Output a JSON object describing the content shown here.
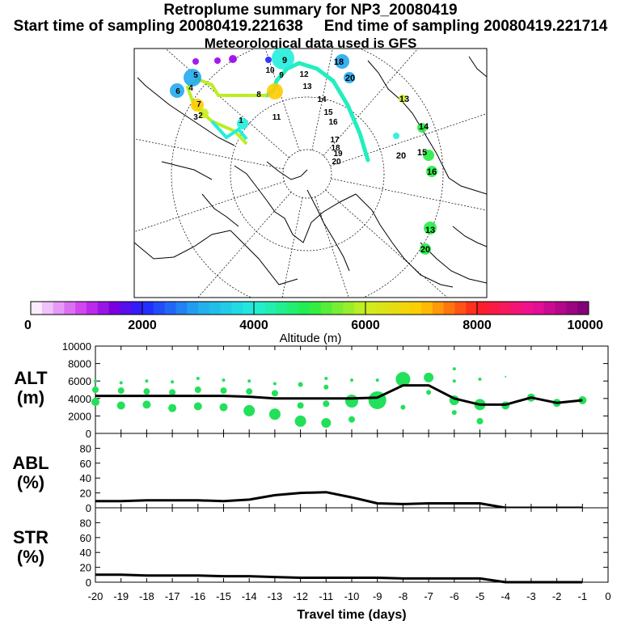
{
  "header": {
    "title": "Retroplume summary for NP3_20080419",
    "start_label": "Start time of sampling 20080419.221638",
    "end_label": "End time of sampling 20080419.221714",
    "met_label": "Meteorological data used is GFS"
  },
  "map": {
    "trajectory_labels": [
      "1",
      "2",
      "3",
      "4",
      "5",
      "6",
      "7",
      "8",
      "9",
      "10",
      "11",
      "12",
      "13",
      "14",
      "15",
      "16",
      "17",
      "18",
      "19",
      "20"
    ]
  },
  "colorbar": {
    "ticks": [
      "0",
      "2000",
      "4000",
      "6000",
      "8000",
      "10000"
    ],
    "label": "Altitude (m)"
  },
  "chart_data": [
    {
      "type": "line",
      "panel": "ALT",
      "ylabel": "ALT\n(m)",
      "ylabel_lines": [
        "ALT",
        "(m)"
      ],
      "ylim": [
        0,
        10000
      ],
      "yticks": [
        "0",
        "2000",
        "4000",
        "6000",
        "8000",
        "10000"
      ],
      "x": [
        -20,
        -19,
        -18,
        -17,
        -16,
        -15,
        -14,
        -13,
        -12,
        -11,
        -10,
        -9,
        -8,
        -7,
        -6,
        -5,
        -4,
        -3,
        -2,
        -1
      ],
      "values": [
        4300,
        4300,
        4300,
        4300,
        4300,
        4300,
        4200,
        4000,
        4000,
        4000,
        4000,
        4100,
        5500,
        5500,
        4000,
        3300,
        3300,
        4100,
        3500,
        3800
      ],
      "point_color": "#22e05a"
    },
    {
      "type": "line",
      "panel": "ABL",
      "ylabel_lines": [
        "ABL",
        "(%)"
      ],
      "ylim": [
        0,
        100
      ],
      "yticks": [
        "0",
        "20",
        "40",
        "60",
        "80"
      ],
      "x": [
        -20,
        -19,
        -18,
        -17,
        -16,
        -15,
        -14,
        -13,
        -12,
        -11,
        -10,
        -9,
        -8,
        -7,
        -6,
        -5,
        -4,
        -3,
        -2,
        -1
      ],
      "values": [
        9,
        9,
        10,
        10,
        10,
        9,
        11,
        17,
        20,
        21,
        14,
        6,
        5,
        6,
        6,
        6,
        0,
        0,
        0,
        0
      ]
    },
    {
      "type": "line",
      "panel": "STR",
      "ylabel_lines": [
        "STR",
        "(%)"
      ],
      "ylim": [
        0,
        100
      ],
      "yticks": [
        "0",
        "20",
        "40",
        "60",
        "80"
      ],
      "x": [
        -20,
        -19,
        -18,
        -17,
        -16,
        -15,
        -14,
        -13,
        -12,
        -11,
        -10,
        -9,
        -8,
        -7,
        -6,
        -5,
        -4,
        -3,
        -2,
        -1
      ],
      "values": [
        10,
        10,
        9,
        9,
        9,
        8,
        8,
        7,
        6,
        6,
        6,
        6,
        5,
        5,
        5,
        5,
        0,
        0,
        0,
        0
      ],
      "xlabel": "Travel time (days)",
      "xticks": [
        "-20",
        "-19",
        "-18",
        "-17",
        "-16",
        "-15",
        "-14",
        "-13",
        "-12",
        "-11",
        "-10",
        "-9",
        "-8",
        "-7",
        "-6",
        "-5",
        "-4",
        "-3",
        "-2",
        "-1",
        "0"
      ]
    }
  ]
}
